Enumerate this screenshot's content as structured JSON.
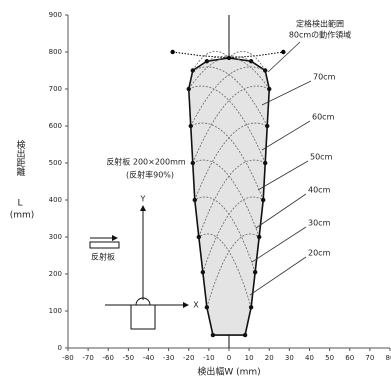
{
  "chart_data": {
    "type": "area",
    "xlabel": "検出幅W (mm)",
    "ylabel": [
      "検出距離",
      "L",
      "(mm)"
    ],
    "xlim": [
      -80,
      80
    ],
    "xticks": [
      -80,
      -70,
      -60,
      -50,
      -40,
      -30,
      -20,
      -10,
      0,
      10,
      20,
      30,
      40,
      50,
      60,
      70,
      80
    ],
    "ylim": [
      0,
      900
    ],
    "yticks": [
      0,
      100,
      200,
      300,
      400,
      500,
      600,
      700,
      800,
      900
    ],
    "series": [
      {
        "x": [
          -8,
          -11,
          -13,
          -15,
          -17,
          -18,
          -19,
          -20,
          -18,
          -11,
          0,
          11,
          18,
          20,
          19,
          18,
          17,
          15,
          13,
          11,
          8
        ],
        "y": [
          35,
          110,
          205,
          300,
          400,
          500,
          600,
          700,
          750,
          775,
          784,
          775,
          750,
          700,
          600,
          500,
          400,
          300,
          205,
          110,
          35
        ],
        "color": "#e4e4e4"
      },
      {
        "x": [
          -28,
          -14,
          0,
          14,
          27
        ],
        "y": [
          800,
          790,
          784,
          790,
          800
        ],
        "color": "#000000"
      }
    ],
    "annotations": [
      "定格検出範囲",
      "80cmの動作領域",
      "70cm",
      "60cm",
      "50cm",
      "40cm",
      "30cm",
      "20cm",
      "反射板 200×200mm",
      "(反射率90%)",
      "反射板",
      "X",
      "Y"
    ]
  }
}
